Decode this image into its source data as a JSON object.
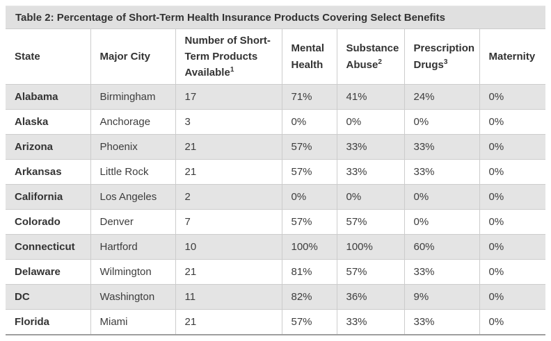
{
  "table": {
    "title": "Table 2: Percentage of Short-Term Health Insurance Products Covering Select Benefits",
    "columns": [
      {
        "label": "State"
      },
      {
        "label": "Major City"
      },
      {
        "label": "Number of Short-Term Products Available",
        "superscript": "1"
      },
      {
        "label": "Mental Health"
      },
      {
        "label": "Substance Abuse",
        "superscript": "2"
      },
      {
        "label": "Prescription Drugs",
        "superscript": "3"
      },
      {
        "label": "Maternity"
      }
    ],
    "rows": [
      [
        "Alabama",
        "Birmingham",
        "17",
        "71%",
        "41%",
        "24%",
        "0%"
      ],
      [
        "Alaska",
        "Anchorage",
        "3",
        "0%",
        "0%",
        "0%",
        "0%"
      ],
      [
        "Arizona",
        "Phoenix",
        "21",
        "57%",
        "33%",
        "33%",
        "0%"
      ],
      [
        "Arkansas",
        "Little Rock",
        "21",
        "57%",
        "33%",
        "33%",
        "0%"
      ],
      [
        "California",
        "Los Angeles",
        "2",
        "0%",
        "0%",
        "0%",
        "0%"
      ],
      [
        "Colorado",
        "Denver",
        "7",
        "57%",
        "57%",
        "0%",
        "0%"
      ],
      [
        "Connecticut",
        "Hartford",
        "10",
        "100%",
        "100%",
        "60%",
        "0%"
      ],
      [
        "Delaware",
        "Wilmington",
        "21",
        "81%",
        "57%",
        "33%",
        "0%"
      ],
      [
        "DC",
        "Washington",
        "11",
        "82%",
        "36%",
        "9%",
        "0%"
      ],
      [
        "Florida",
        "Miami",
        "21",
        "57%",
        "33%",
        "33%",
        "0%"
      ]
    ]
  },
  "colors": {
    "title_bar_background": "#e0e0e0",
    "row_stripe_background": "#e4e4e4",
    "grid_line": "#cccccc",
    "bottom_frame_line": "#9e9e9e",
    "heading_text": "#333333",
    "body_text": "#3d3d3d"
  }
}
